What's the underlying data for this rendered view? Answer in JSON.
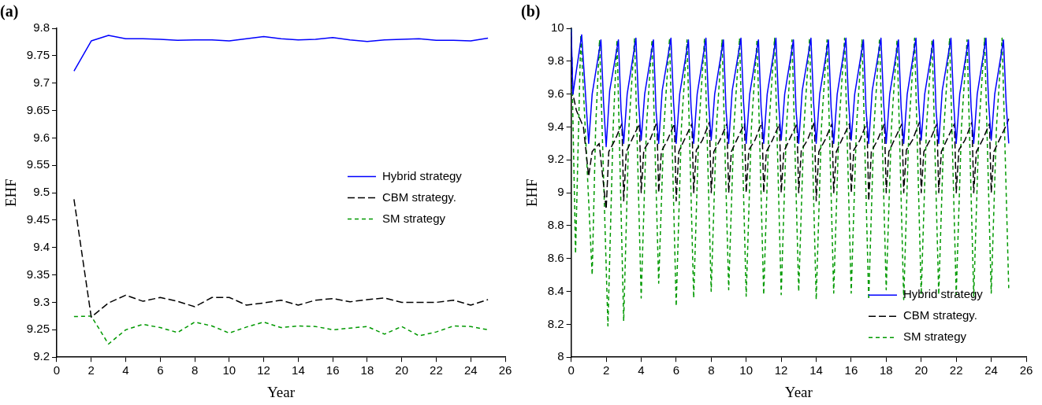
{
  "chart_data": [
    {
      "type": "line",
      "title": "(a)",
      "xlabel": "Year",
      "ylabel": "EHF",
      "x": [
        1,
        2,
        3,
        4,
        5,
        6,
        7,
        8,
        9,
        10,
        11,
        12,
        13,
        14,
        15,
        16,
        17,
        18,
        19,
        20,
        21,
        22,
        23,
        24,
        25
      ],
      "xlim": [
        0,
        26
      ],
      "xticks": [
        0,
        2,
        4,
        6,
        8,
        10,
        12,
        14,
        16,
        18,
        20,
        22,
        24,
        26
      ],
      "ylim": [
        9.2,
        9.8
      ],
      "yticks": [
        9.2,
        9.25,
        9.3,
        9.35,
        9.4,
        9.45,
        9.5,
        9.55,
        9.6,
        9.65,
        9.7,
        9.75,
        9.8
      ],
      "legend": "right",
      "grid": false,
      "marker": "none",
      "series": [
        {
          "name": "Hybrid strategy",
          "color": "#0000ff",
          "line_style": "solid",
          "values": [
            9.722,
            9.777,
            9.787,
            9.781,
            9.781,
            9.78,
            9.778,
            9.779,
            9.779,
            9.777,
            9.781,
            9.785,
            9.781,
            9.779,
            9.78,
            9.783,
            9.779,
            9.776,
            9.779,
            9.78,
            9.781,
            9.778,
            9.778,
            9.777,
            9.782
          ]
        },
        {
          "name": "CBM strategy.",
          "color": "#000000",
          "line_style": "dashed",
          "values": [
            9.488,
            9.273,
            9.299,
            9.313,
            9.302,
            9.309,
            9.302,
            9.292,
            9.309,
            9.309,
            9.295,
            9.299,
            9.304,
            9.295,
            9.304,
            9.307,
            9.301,
            9.305,
            9.308,
            9.3,
            9.3,
            9.3,
            9.304,
            9.295,
            9.305
          ]
        },
        {
          "name": "SM strategy",
          "color": "#009900",
          "line_style": "dashed",
          "values": [
            9.274,
            9.275,
            9.224,
            9.25,
            9.26,
            9.254,
            9.245,
            9.264,
            9.257,
            9.244,
            9.255,
            9.264,
            9.254,
            9.257,
            9.256,
            9.25,
            9.253,
            9.256,
            9.242,
            9.256,
            9.239,
            9.246,
            9.257,
            9.256,
            9.25
          ]
        }
      ]
    },
    {
      "type": "line",
      "title": "(b)",
      "xlabel": "Year",
      "ylabel": "EHF",
      "xlim": [
        0,
        26
      ],
      "xticks": [
        0,
        2,
        4,
        6,
        8,
        10,
        12,
        14,
        16,
        18,
        20,
        22,
        24,
        26
      ],
      "ylim": [
        8,
        10
      ],
      "yticks": [
        8,
        8.2,
        8.4,
        8.6,
        8.8,
        9,
        9.2,
        9.4,
        9.6,
        9.8,
        10
      ],
      "legend": "bottom right",
      "grid": false,
      "marker": "none",
      "series": [
        {
          "name": "Hybrid strategy",
          "color": "#0000ff",
          "line_style": "solid",
          "x": [
            0,
            0.1,
            0.6,
            1,
            1.2,
            1.7,
            1.85,
            2,
            2.2,
            2.7,
            2.85,
            3,
            3.2,
            3.7,
            3.85,
            4,
            4.2,
            4.7,
            4.85,
            5,
            5.2,
            5.7,
            5.85,
            6,
            6.2,
            6.7,
            6.85,
            7,
            7.2,
            7.7,
            7.85,
            8,
            8.2,
            8.7,
            8.85,
            9,
            9.2,
            9.7,
            9.85,
            10,
            10.2,
            10.7,
            10.85,
            11,
            11.2,
            11.7,
            11.85,
            12,
            12.2,
            12.7,
            12.85,
            13,
            13.2,
            13.7,
            13.85,
            14,
            14.2,
            14.7,
            14.85,
            15,
            15.2,
            15.7,
            15.85,
            16,
            16.2,
            16.7,
            16.85,
            17,
            17.2,
            17.7,
            17.85,
            18,
            18.2,
            18.7,
            18.85,
            19,
            19.2,
            19.7,
            19.85,
            20,
            20.2,
            20.7,
            20.85,
            21,
            21.2,
            21.7,
            21.85,
            22,
            22.2,
            22.7,
            22.85,
            23,
            23.2,
            23.7,
            23.85,
            24,
            24.2,
            24.7,
            24.85,
            25
          ],
          "values": [
            10,
            9.6,
            9.96,
            9.3,
            9.6,
            9.93,
            9.55,
            9.28,
            9.62,
            9.93,
            9.5,
            9.3,
            9.6,
            9.94,
            9.55,
            9.32,
            9.6,
            9.93,
            9.5,
            9.3,
            9.62,
            9.94,
            9.55,
            9.3,
            9.6,
            9.93,
            9.52,
            9.3,
            9.6,
            9.94,
            9.55,
            9.32,
            9.6,
            9.93,
            9.5,
            9.3,
            9.62,
            9.94,
            9.55,
            9.3,
            9.6,
            9.93,
            9.52,
            9.3,
            9.6,
            9.94,
            9.55,
            9.32,
            9.6,
            9.93,
            9.5,
            9.3,
            9.62,
            9.94,
            9.55,
            9.3,
            9.6,
            9.93,
            9.52,
            9.3,
            9.6,
            9.94,
            9.55,
            9.32,
            9.6,
            9.93,
            9.5,
            9.3,
            9.62,
            9.94,
            9.55,
            9.3,
            9.6,
            9.93,
            9.52,
            9.3,
            9.6,
            9.94,
            9.55,
            9.32,
            9.6,
            9.93,
            9.5,
            9.3,
            9.62,
            9.94,
            9.55,
            9.3,
            9.6,
            9.93,
            9.52,
            9.3,
            9.6,
            9.94,
            9.55,
            9.32,
            9.6,
            9.93,
            9.55,
            9.3
          ]
        },
        {
          "name": "CBM strategy.",
          "color": "#000000",
          "line_style": "dashed",
          "x": [
            0,
            0.1,
            0.3,
            0.7,
            1,
            1.2,
            1.6,
            2,
            2.15,
            2.5,
            2.9,
            3,
            3.15,
            3.5,
            3.9,
            4,
            4.15,
            4.5,
            4.9,
            5,
            5.15,
            5.5,
            5.9,
            6,
            6.15,
            6.5,
            6.9,
            7,
            7.15,
            7.5,
            7.9,
            8,
            8.15,
            8.5,
            8.9,
            9,
            9.15,
            9.5,
            9.9,
            10,
            10.15,
            10.5,
            10.9,
            11,
            11.15,
            11.5,
            11.9,
            12,
            12.15,
            12.5,
            12.9,
            13,
            13.15,
            13.5,
            13.9,
            14,
            14.15,
            14.5,
            14.9,
            15,
            15.15,
            15.5,
            15.9,
            16,
            16.15,
            16.5,
            16.9,
            17,
            17.15,
            17.5,
            17.9,
            18,
            18.15,
            18.5,
            18.9,
            19,
            19.15,
            19.5,
            19.9,
            20,
            20.15,
            20.5,
            20.9,
            21,
            21.15,
            21.5,
            21.9,
            22,
            22.15,
            22.5,
            22.9,
            23,
            23.15,
            23.5,
            23.9,
            24,
            24.15,
            24.5,
            24.9,
            25
          ],
          "values": [
            9.95,
            9.6,
            9.5,
            9.4,
            9.1,
            9.25,
            9.3,
            8.9,
            9.25,
            9.32,
            9.42,
            8.95,
            9.25,
            9.33,
            9.42,
            9.0,
            9.26,
            9.32,
            9.43,
            9.0,
            9.25,
            9.32,
            9.42,
            8.95,
            9.25,
            9.33,
            9.42,
            9.0,
            9.26,
            9.32,
            9.43,
            9.0,
            9.25,
            9.32,
            9.42,
            9.0,
            9.25,
            9.33,
            9.42,
            9.0,
            9.26,
            9.32,
            9.43,
            9.0,
            9.25,
            9.32,
            9.42,
            9.0,
            9.25,
            9.33,
            9.42,
            9.0,
            9.26,
            9.32,
            9.43,
            8.95,
            9.25,
            9.32,
            9.42,
            9.0,
            9.25,
            9.33,
            9.42,
            9.0,
            9.26,
            9.32,
            9.43,
            8.95,
            9.25,
            9.32,
            9.42,
            9.0,
            9.25,
            9.33,
            9.42,
            9.0,
            9.26,
            9.32,
            9.43,
            9.0,
            9.25,
            9.32,
            9.42,
            9.0,
            9.25,
            9.33,
            9.42,
            9.0,
            9.26,
            9.32,
            9.43,
            9.0,
            9.25,
            9.32,
            9.42,
            9.0,
            9.25,
            9.33,
            9.42,
            9.45
          ]
        },
        {
          "name": "SM strategy",
          "color": "#009900",
          "line_style": "dashed",
          "x": [
            0,
            0.25,
            0.55,
            1.2,
            1.4,
            1.62,
            2.1,
            2.4,
            2.62,
            3,
            3.3,
            3.62,
            4,
            4.3,
            4.62,
            5,
            5.3,
            5.62,
            6,
            6.3,
            6.62,
            7,
            7.3,
            7.62,
            8,
            8.3,
            8.62,
            9,
            9.3,
            9.62,
            10,
            10.3,
            10.62,
            11,
            11.3,
            11.62,
            12,
            12.3,
            12.62,
            13,
            13.3,
            13.62,
            14,
            14.3,
            14.62,
            15,
            15.3,
            15.62,
            16,
            16.3,
            16.62,
            17,
            17.3,
            17.62,
            18,
            18.3,
            18.62,
            19,
            19.3,
            19.62,
            20,
            20.3,
            20.62,
            21,
            21.3,
            21.62,
            22,
            22.3,
            22.62,
            23,
            23.3,
            23.62,
            24,
            24.3,
            24.62,
            25
          ],
          "values": [
            10,
            8.63,
            9.96,
            8.5,
            9.4,
            9.93,
            8.19,
            9.4,
            9.93,
            8.22,
            9.4,
            9.94,
            8.36,
            9.4,
            9.93,
            8.45,
            9.4,
            9.94,
            8.31,
            9.4,
            9.93,
            8.36,
            9.4,
            9.94,
            8.4,
            9.4,
            9.93,
            8.41,
            9.4,
            9.94,
            8.37,
            9.4,
            9.93,
            8.38,
            9.4,
            9.94,
            8.38,
            9.4,
            9.93,
            8.4,
            9.4,
            9.94,
            8.35,
            9.4,
            9.93,
            8.39,
            9.4,
            9.94,
            8.39,
            9.4,
            9.93,
            8.35,
            9.4,
            9.94,
            8.41,
            9.4,
            9.93,
            8.35,
            9.4,
            9.94,
            8.38,
            9.4,
            9.93,
            8.38,
            9.4,
            9.94,
            8.38,
            9.4,
            9.93,
            8.37,
            9.4,
            9.94,
            8.39,
            9.4,
            9.94,
            8.42
          ]
        }
      ]
    }
  ]
}
